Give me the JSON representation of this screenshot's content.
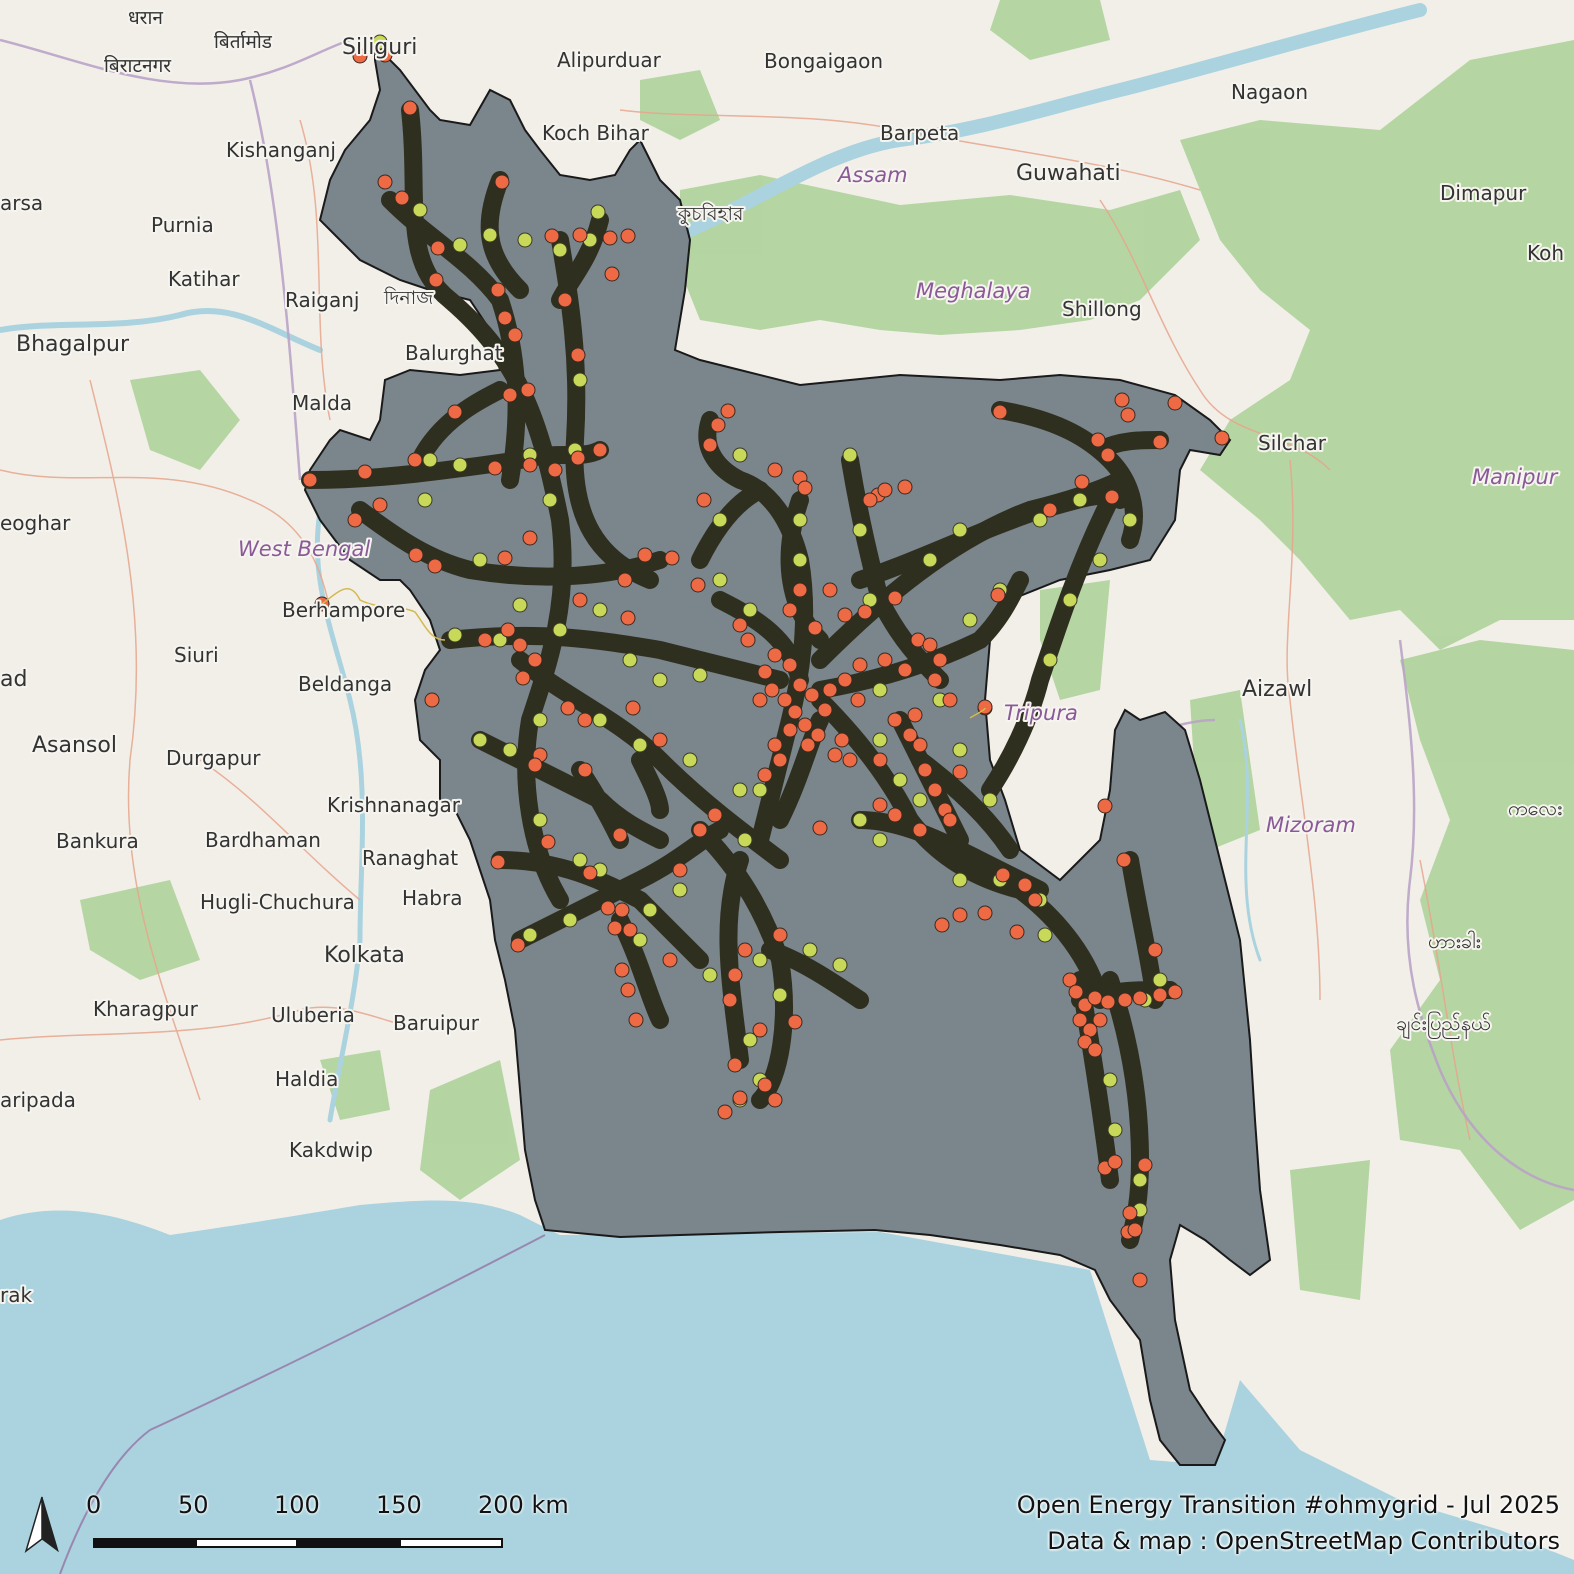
{
  "map": {
    "colors": {
      "land": "#f2efe9",
      "forest": "#aed39a",
      "water": "#aad3df",
      "country_fill": "#7a858c",
      "line": "#2f2f1f",
      "substation": "#ee6a44",
      "tower": "#c8d95a"
    },
    "places": [
      {
        "name": "धरान",
        "size": "small"
      },
      {
        "name": "बिर्तामोड",
        "size": "small"
      },
      {
        "name": "Siliguri",
        "size": "big"
      },
      {
        "name": "बिराटनगर",
        "size": "small"
      },
      {
        "name": "Alipurduar",
        "size": "mid"
      },
      {
        "name": "Bongaigaon",
        "size": "mid"
      },
      {
        "name": "Nagaon",
        "size": "mid"
      },
      {
        "name": "Koch Bihar",
        "size": "mid"
      },
      {
        "name": "Barpeta",
        "size": "mid"
      },
      {
        "name": "Kishanganj",
        "size": "mid"
      },
      {
        "name": "Guwahati",
        "size": "big"
      },
      {
        "name": "arsa",
        "size": "mid"
      },
      {
        "name": "Purnia",
        "size": "mid"
      },
      {
        "name": "Dimapur",
        "size": "mid"
      },
      {
        "name": "Katihar",
        "size": "mid"
      },
      {
        "name": "Koh",
        "size": "mid"
      },
      {
        "name": "Raiganj",
        "size": "mid"
      },
      {
        "name": "Shillong",
        "size": "mid"
      },
      {
        "name": "Bhagalpur",
        "size": "big"
      },
      {
        "name": "Balurghat",
        "size": "mid"
      },
      {
        "name": "Malda",
        "size": "mid"
      },
      {
        "name": "Silchar",
        "size": "mid"
      },
      {
        "name": "eoghar",
        "size": "mid"
      },
      {
        "name": "Berhampore",
        "size": "mid"
      },
      {
        "name": "Siuri",
        "size": "mid"
      },
      {
        "name": "ad",
        "size": "big"
      },
      {
        "name": "Beldanga",
        "size": "mid"
      },
      {
        "name": "Aizawl",
        "size": "big"
      },
      {
        "name": "Asansol",
        "size": "big"
      },
      {
        "name": "Durgapur",
        "size": "mid"
      },
      {
        "name": "Krishnanagar",
        "size": "mid"
      },
      {
        "name": "Bankura",
        "size": "mid"
      },
      {
        "name": "Bardhaman",
        "size": "mid"
      },
      {
        "name": "Ranaghat",
        "size": "mid"
      },
      {
        "name": "Hugli-Chuchura",
        "size": "mid"
      },
      {
        "name": "Habra",
        "size": "mid"
      },
      {
        "name": "Kolkata",
        "size": "big"
      },
      {
        "name": "Kharagpur",
        "size": "mid"
      },
      {
        "name": "Uluberia",
        "size": "mid"
      },
      {
        "name": "Baruipur",
        "size": "mid"
      },
      {
        "name": "Haldia",
        "size": "mid"
      },
      {
        "name": "aripada",
        "size": "mid"
      },
      {
        "name": "Kakdwip",
        "size": "mid"
      },
      {
        "name": "rak",
        "size": "mid"
      },
      {
        "name": "ကလေး",
        "size": "mid"
      },
      {
        "name": "ဟားခါး",
        "size": "mid"
      },
      {
        "name": "ချင်းပြည်နယ်",
        "size": "mid"
      },
      {
        "name": "দিনাজ",
        "size": "small"
      },
      {
        "name": "কুচবিহার",
        "size": "small"
      }
    ],
    "regions": [
      {
        "name": "Assam"
      },
      {
        "name": "Meghalaya"
      },
      {
        "name": "West Bengal"
      },
      {
        "name": "Tripura"
      },
      {
        "name": "Manipur"
      },
      {
        "name": "Mizoram"
      }
    ]
  },
  "scale": {
    "labels": [
      "0",
      "50",
      "100",
      "150",
      "200 km"
    ],
    "unit": "km"
  },
  "north_arrow": {
    "icon": "north-arrow-icon"
  },
  "credits": {
    "line1": "Open Energy Transition #ohmygrid - Jul 2025",
    "line2": "Data & map : OpenStreetMap Contributors"
  }
}
